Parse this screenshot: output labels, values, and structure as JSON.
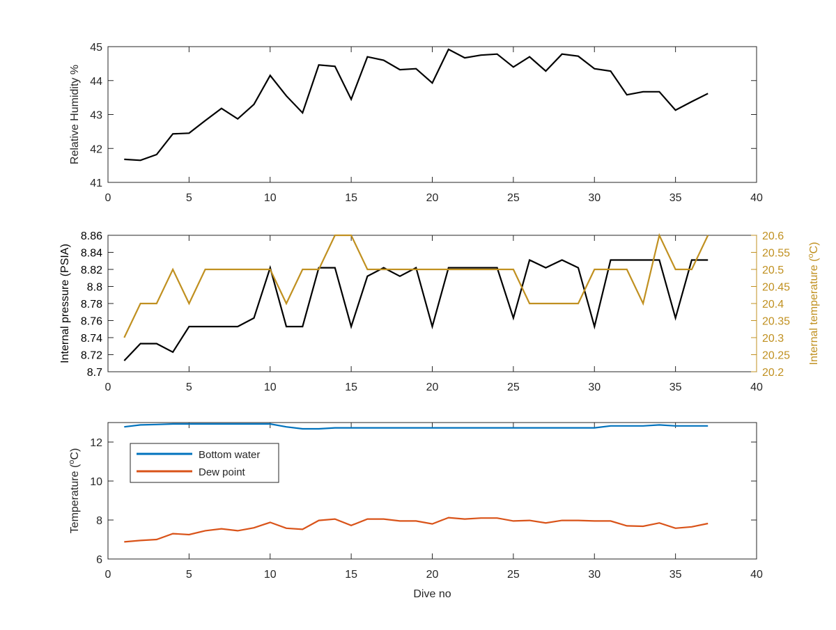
{
  "chart_data": [
    {
      "type": "line",
      "xlabel": "",
      "ylabel": "Relative Humidity %",
      "xlim": [
        0,
        40
      ],
      "ylim": [
        41,
        45
      ],
      "xticks": [
        "0",
        "5",
        "10",
        "15",
        "20",
        "25",
        "30",
        "35",
        "40"
      ],
      "yticks": [
        "41",
        "42",
        "43",
        "44",
        "45"
      ],
      "series": [
        {
          "color": "#000000",
          "x": [
            1,
            2,
            3,
            4,
            5,
            6,
            7,
            8,
            9,
            10,
            11,
            12,
            13,
            14,
            15,
            16,
            17,
            18,
            19,
            20,
            21,
            22,
            23,
            24,
            25,
            26,
            27,
            28,
            29,
            30,
            31,
            32,
            33,
            34,
            35,
            36,
            37
          ],
          "values": [
            41.68,
            41.65,
            41.82,
            42.43,
            42.45,
            42.82,
            43.18,
            42.87,
            43.3,
            44.15,
            43.55,
            43.05,
            44.46,
            44.42,
            43.45,
            44.7,
            44.6,
            44.32,
            44.35,
            43.93,
            44.92,
            44.67,
            44.75,
            44.78,
            44.4,
            44.7,
            44.28,
            44.78,
            44.72,
            44.35,
            44.28,
            43.58,
            43.67,
            43.67,
            43.13,
            43.38,
            43.62
          ]
        }
      ]
    },
    {
      "type": "line",
      "xlabel": "",
      "ylabel": "Internal pressure (PSIA)",
      "ylabel_right": "Internal temperature (°C)",
      "xlim": [
        0,
        40
      ],
      "ylim": [
        8.7,
        8.86
      ],
      "ylim_right": [
        20.2,
        20.6
      ],
      "xticks": [
        "0",
        "5",
        "10",
        "15",
        "20",
        "25",
        "30",
        "35",
        "40"
      ],
      "yticks": [
        "8.7",
        "8.72",
        "8.74",
        "8.76",
        "8.78",
        "8.8",
        "8.82",
        "8.84",
        "8.86"
      ],
      "yticks_right": [
        "20.2",
        "20.25",
        "20.3",
        "20.35",
        "20.4",
        "20.45",
        "20.5",
        "20.55",
        "20.6"
      ],
      "series": [
        {
          "color": "#000000",
          "axis": "left",
          "x": [
            1,
            2,
            3,
            4,
            5,
            6,
            7,
            8,
            9,
            10,
            11,
            12,
            13,
            14,
            15,
            16,
            17,
            18,
            19,
            20,
            21,
            22,
            23,
            24,
            25,
            26,
            27,
            28,
            29,
            30,
            31,
            32,
            33,
            34,
            35,
            36,
            37
          ],
          "values": [
            8.713,
            8.733,
            8.733,
            8.723,
            8.753,
            8.753,
            8.753,
            8.753,
            8.763,
            8.822,
            8.753,
            8.753,
            8.822,
            8.822,
            8.753,
            8.812,
            8.822,
            8.812,
            8.822,
            8.753,
            8.822,
            8.822,
            8.822,
            8.822,
            8.763,
            8.831,
            8.822,
            8.831,
            8.822,
            8.753,
            8.831,
            8.831,
            8.831,
            8.831,
            8.763,
            8.831,
            8.831
          ]
        },
        {
          "color": "#C09020",
          "axis": "right",
          "x": [
            1,
            2,
            3,
            4,
            5,
            6,
            7,
            8,
            9,
            10,
            11,
            12,
            13,
            14,
            15,
            16,
            17,
            18,
            19,
            20,
            21,
            22,
            23,
            24,
            25,
            26,
            27,
            28,
            29,
            30,
            31,
            32,
            33,
            34,
            35,
            36,
            37
          ],
          "values": [
            20.3,
            20.4,
            20.4,
            20.5,
            20.4,
            20.5,
            20.5,
            20.5,
            20.5,
            20.5,
            20.4,
            20.5,
            20.5,
            20.6,
            20.6,
            20.5,
            20.5,
            20.5,
            20.5,
            20.5,
            20.5,
            20.5,
            20.5,
            20.5,
            20.5,
            20.4,
            20.4,
            20.4,
            20.4,
            20.5,
            20.5,
            20.5,
            20.4,
            20.6,
            20.5,
            20.5,
            20.6
          ]
        }
      ]
    },
    {
      "type": "line",
      "xlabel": "Dive no",
      "ylabel": "Temperature (°C)",
      "xlim": [
        0,
        40
      ],
      "ylim": [
        6,
        13
      ],
      "xticks": [
        "0",
        "5",
        "10",
        "15",
        "20",
        "25",
        "30",
        "35",
        "40"
      ],
      "yticks": [
        "6",
        "8",
        "10",
        "12"
      ],
      "legend": "top-left",
      "series": [
        {
          "name": "Bottom water",
          "color": "#0072BD",
          "x": [
            1,
            2,
            3,
            4,
            5,
            6,
            7,
            8,
            9,
            10,
            11,
            12,
            13,
            14,
            15,
            16,
            17,
            18,
            19,
            20,
            21,
            22,
            23,
            24,
            25,
            26,
            27,
            28,
            29,
            30,
            31,
            32,
            33,
            34,
            35,
            36,
            37
          ],
          "values": [
            12.78,
            12.88,
            12.9,
            12.93,
            12.93,
            12.93,
            12.93,
            12.93,
            12.93,
            12.93,
            12.78,
            12.68,
            12.68,
            12.73,
            12.73,
            12.73,
            12.73,
            12.73,
            12.73,
            12.73,
            12.73,
            12.73,
            12.73,
            12.73,
            12.73,
            12.73,
            12.73,
            12.73,
            12.73,
            12.73,
            12.83,
            12.83,
            12.83,
            12.88,
            12.83,
            12.83,
            12.83
          ]
        },
        {
          "name": "Dew point",
          "color": "#D95319",
          "x": [
            1,
            2,
            3,
            4,
            5,
            6,
            7,
            8,
            9,
            10,
            11,
            12,
            13,
            14,
            15,
            16,
            17,
            18,
            19,
            20,
            21,
            22,
            23,
            24,
            25,
            26,
            27,
            28,
            29,
            30,
            31,
            32,
            33,
            34,
            35,
            36,
            37
          ],
          "values": [
            6.88,
            6.95,
            7.0,
            7.3,
            7.25,
            7.45,
            7.55,
            7.45,
            7.6,
            7.88,
            7.58,
            7.52,
            7.98,
            8.05,
            7.72,
            8.05,
            8.05,
            7.95,
            7.95,
            7.8,
            8.12,
            8.05,
            8.1,
            8.1,
            7.95,
            7.98,
            7.85,
            7.98,
            7.98,
            7.95,
            7.95,
            7.7,
            7.68,
            7.85,
            7.58,
            7.65,
            7.82
          ]
        }
      ]
    }
  ]
}
